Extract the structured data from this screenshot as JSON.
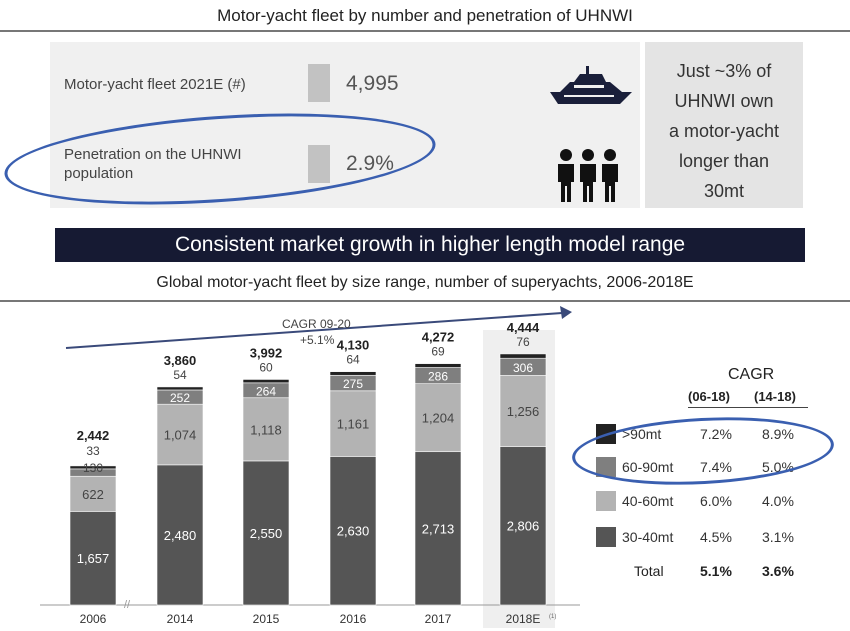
{
  "top_section": {
    "title": "Motor-yacht fleet by number and penetration of UHNWI",
    "fleet_label": "Motor-yacht fleet 2021E (#)",
    "fleet_value": "4,995",
    "penetration_label_line1": "Penetration on the UHNWI",
    "penetration_label_line2": "population",
    "penetration_value": "2.9%",
    "callout_lines": [
      "Just ~3% of",
      "UHNWI own",
      "a motor-yacht",
      "longer than",
      "30mt"
    ],
    "icons": [
      "yacht-icon",
      "people-icon"
    ]
  },
  "banner": {
    "text": "Consistent market growth in higher length model range"
  },
  "chart_section": {
    "title": "Global motor-yacht fleet by size range, number of superyachts, 2006-2018E",
    "cagr_arrow_label": "CAGR 09-20",
    "cagr_arrow_value": "+5.1%",
    "footnote_marker": "(1)"
  },
  "chart_data": {
    "type": "bar",
    "stacked": true,
    "categories": [
      "2006",
      "2014",
      "2015",
      "2016",
      "2017",
      "2018E"
    ],
    "totals": [
      "2,442",
      "3,860",
      "3,992",
      "4,130",
      "4,272",
      "4,444"
    ],
    "series": [
      {
        "name": "30-40mt",
        "values": [
          1657,
          2480,
          2550,
          2630,
          2713,
          2806
        ],
        "labels": [
          "1,657",
          "2,480",
          "2,550",
          "2,630",
          "2,713",
          "2,806"
        ],
        "color": "#555555"
      },
      {
        "name": "40-60mt",
        "values": [
          622,
          1074,
          1118,
          1161,
          1204,
          1256
        ],
        "labels": [
          "622",
          "1,074",
          "1,118",
          "1,161",
          "1,204",
          "1,256"
        ],
        "color": "#b3b3b3"
      },
      {
        "name": "60-90mt",
        "values": [
          130,
          252,
          264,
          275,
          286,
          306
        ],
        "labels": [
          "130",
          "252",
          "264",
          "275",
          "286",
          "306"
        ],
        "color": "#7f7f7f"
      },
      {
        "name": ">90mt",
        "values": [
          33,
          54,
          60,
          64,
          69,
          76
        ],
        "labels": [
          "33",
          "54",
          "60",
          "64",
          "69",
          "76"
        ],
        "color": "#222222"
      }
    ]
  },
  "legend_table": {
    "title": "CAGR",
    "col1": "(06-18)",
    "col2": "(14-18)",
    "rows": [
      {
        "name": ">90mt",
        "c1": "7.2%",
        "c2": "8.9%",
        "color": "#222222"
      },
      {
        "name": "60-90mt",
        "c1": "7.4%",
        "c2": "5.0%",
        "color": "#7f7f7f"
      },
      {
        "name": "40-60mt",
        "c1": "6.0%",
        "c2": "4.0%",
        "color": "#b3b3b3"
      },
      {
        "name": "30-40mt",
        "c1": "4.5%",
        "c2": "3.1%",
        "color": "#555555"
      }
    ],
    "total_label": "Total",
    "total_c1": "5.1%",
    "total_c2": "3.6%"
  }
}
